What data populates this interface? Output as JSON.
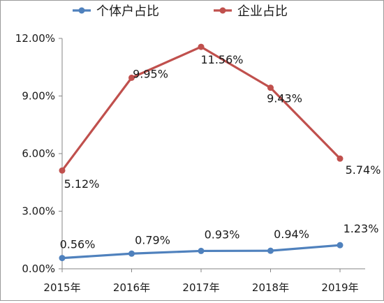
{
  "chart_data": {
    "type": "line",
    "title": "",
    "xlabel": "",
    "ylabel": "",
    "categories": [
      "2015年",
      "2016年",
      "2017年",
      "2018年",
      "2019年"
    ],
    "ylim": [
      0,
      12
    ],
    "yticks": [
      0,
      3,
      6,
      9,
      12
    ],
    "ytick_labels": [
      "0.00%",
      "3.00%",
      "6.00%",
      "9.00%",
      "12.00%"
    ],
    "grid": false,
    "legend_position": "top",
    "series": [
      {
        "name": "个体户占比",
        "color": "#4f81bd",
        "values": [
          0.56,
          0.79,
          0.93,
          0.94,
          1.23
        ],
        "labels": [
          "0.56%",
          "0.79%",
          "0.93%",
          "0.94%",
          "1.23%"
        ]
      },
      {
        "name": "企业占比",
        "color": "#c0504d",
        "values": [
          5.12,
          9.95,
          11.56,
          9.43,
          5.74
        ],
        "labels": [
          "5.12%",
          "9.95%",
          "11.56%",
          "9.43%",
          "5.74%"
        ]
      }
    ]
  }
}
